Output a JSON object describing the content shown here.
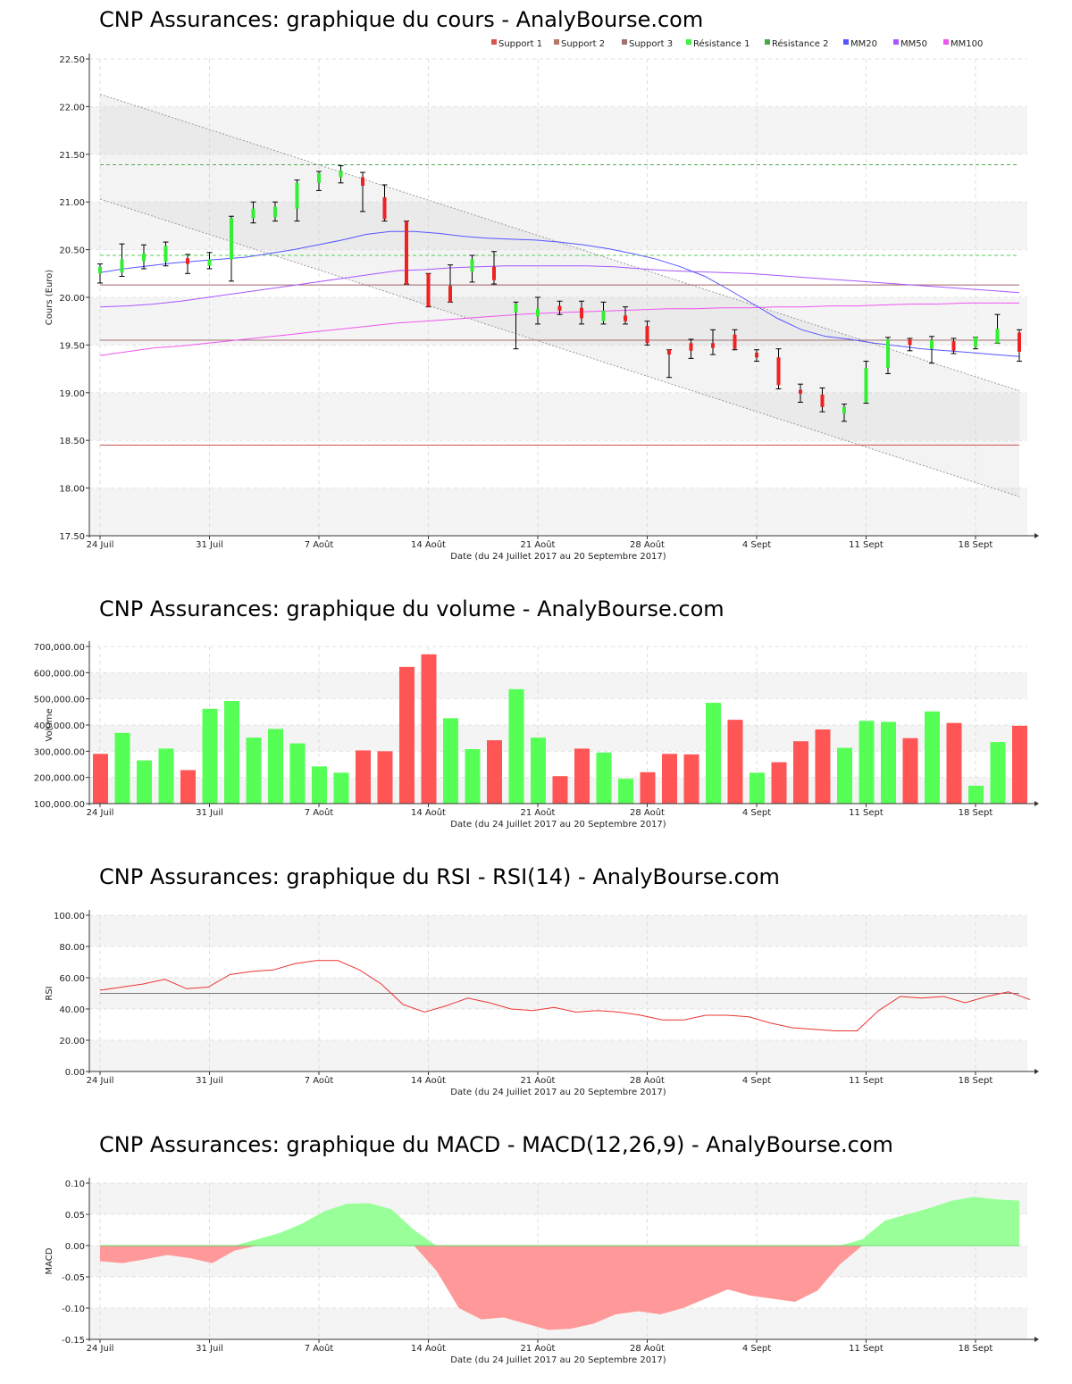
{
  "chart_data": [
    {
      "type": "candlestick",
      "title": "CNP Assurances: graphique du cours - AnalyBourse.com",
      "xlabel": "Date (du 24 Juillet 2017 au 20 Septembre 2017)",
      "ylabel": "Cours (Euro)",
      "ylim": [
        17.5,
        22.5
      ],
      "yticks": [
        "17.50",
        "18.00",
        "18.50",
        "19.00",
        "19.50",
        "20.00",
        "20.50",
        "21.00",
        "21.50",
        "22.00",
        "22.50"
      ],
      "xticks": [
        {
          "i": 0,
          "label": "24 Juil"
        },
        {
          "i": 5,
          "label": "31 Juil"
        },
        {
          "i": 10,
          "label": "7 Août"
        },
        {
          "i": 15,
          "label": "14 Août"
        },
        {
          "i": 20,
          "label": "21 Août"
        },
        {
          "i": 25,
          "label": "28 Août"
        },
        {
          "i": 30,
          "label": "4 Sept"
        },
        {
          "i": 35,
          "label": "11 Sept"
        },
        {
          "i": 40,
          "label": "18 Sept"
        }
      ],
      "legend": [
        {
          "name": "Support 1",
          "color": "#d9534f"
        },
        {
          "name": "Support 2",
          "color": "#b5756a"
        },
        {
          "name": "Support 3",
          "color": "#9e7070"
        },
        {
          "name": "Résistance 1",
          "color": "#44ee44"
        },
        {
          "name": "Résistance 2",
          "color": "#44aa44"
        },
        {
          "name": "MM20",
          "color": "#5555ff"
        },
        {
          "name": "MM50",
          "color": "#aa55ff"
        },
        {
          "name": "MM100",
          "color": "#ee55ee"
        }
      ],
      "levels": {
        "support1": 18.45,
        "support2": 19.55,
        "support3": 20.13,
        "resistance1": 20.44,
        "resistance2": 21.39
      },
      "channel": {
        "upper": [
          22.13,
          19.02
        ],
        "lower": [
          21.03,
          17.91
        ]
      },
      "ohlc": [
        {
          "o": 20.25,
          "h": 20.35,
          "l": 20.15,
          "c": 20.32
        },
        {
          "o": 20.26,
          "h": 20.56,
          "l": 20.22,
          "c": 20.4
        },
        {
          "o": 20.38,
          "h": 20.55,
          "l": 20.3,
          "c": 20.46
        },
        {
          "o": 20.37,
          "h": 20.58,
          "l": 20.33,
          "c": 20.54
        },
        {
          "o": 20.41,
          "h": 20.45,
          "l": 20.25,
          "c": 20.35
        },
        {
          "o": 20.33,
          "h": 20.47,
          "l": 20.3,
          "c": 20.4
        },
        {
          "o": 20.4,
          "h": 20.85,
          "l": 20.17,
          "c": 20.83
        },
        {
          "o": 20.83,
          "h": 21.0,
          "l": 20.78,
          "c": 20.93
        },
        {
          "o": 20.84,
          "h": 21.0,
          "l": 20.8,
          "c": 20.95
        },
        {
          "o": 20.93,
          "h": 21.23,
          "l": 20.8,
          "c": 21.2
        },
        {
          "o": 21.2,
          "h": 21.32,
          "l": 21.12,
          "c": 21.3
        },
        {
          "o": 21.26,
          "h": 21.38,
          "l": 21.2,
          "c": 21.33
        },
        {
          "o": 21.26,
          "h": 21.31,
          "l": 20.9,
          "c": 21.17
        },
        {
          "o": 21.05,
          "h": 21.18,
          "l": 20.8,
          "c": 20.82
        },
        {
          "o": 20.8,
          "h": 20.8,
          "l": 20.14,
          "c": 20.14
        },
        {
          "o": 20.25,
          "h": 20.25,
          "l": 19.9,
          "c": 19.9
        },
        {
          "o": 20.12,
          "h": 20.34,
          "l": 19.95,
          "c": 19.95
        },
        {
          "o": 20.27,
          "h": 20.44,
          "l": 20.16,
          "c": 20.4
        },
        {
          "o": 20.32,
          "h": 20.48,
          "l": 20.14,
          "c": 20.18
        },
        {
          "o": 19.84,
          "h": 19.95,
          "l": 19.46,
          "c": 19.93
        },
        {
          "o": 19.8,
          "h": 20.0,
          "l": 19.72,
          "c": 19.88
        },
        {
          "o": 19.91,
          "h": 19.96,
          "l": 19.82,
          "c": 19.86
        },
        {
          "o": 19.89,
          "h": 19.96,
          "l": 19.72,
          "c": 19.78
        },
        {
          "o": 19.75,
          "h": 19.95,
          "l": 19.72,
          "c": 19.86
        },
        {
          "o": 19.81,
          "h": 19.9,
          "l": 19.72,
          "c": 19.75
        },
        {
          "o": 19.7,
          "h": 19.75,
          "l": 19.5,
          "c": 19.52
        },
        {
          "o": 19.45,
          "h": 19.45,
          "l": 19.16,
          "c": 19.4
        },
        {
          "o": 19.52,
          "h": 19.56,
          "l": 19.36,
          "c": 19.44
        },
        {
          "o": 19.52,
          "h": 19.66,
          "l": 19.4,
          "c": 19.47
        },
        {
          "o": 19.61,
          "h": 19.66,
          "l": 19.45,
          "c": 19.46
        },
        {
          "o": 19.42,
          "h": 19.45,
          "l": 19.33,
          "c": 19.37
        },
        {
          "o": 19.37,
          "h": 19.46,
          "l": 19.04,
          "c": 19.08
        },
        {
          "o": 19.03,
          "h": 19.09,
          "l": 18.9,
          "c": 18.99
        },
        {
          "o": 18.98,
          "h": 19.05,
          "l": 18.8,
          "c": 18.85
        },
        {
          "o": 18.78,
          "h": 18.88,
          "l": 18.7,
          "c": 18.85
        },
        {
          "o": 18.9,
          "h": 19.33,
          "l": 18.89,
          "c": 19.26
        },
        {
          "o": 19.26,
          "h": 19.58,
          "l": 19.2,
          "c": 19.56
        },
        {
          "o": 19.56,
          "h": 19.57,
          "l": 19.44,
          "c": 19.5
        },
        {
          "o": 19.46,
          "h": 19.59,
          "l": 19.31,
          "c": 19.55
        },
        {
          "o": 19.54,
          "h": 19.57,
          "l": 19.41,
          "c": 19.44
        },
        {
          "o": 19.48,
          "h": 19.58,
          "l": 19.46,
          "c": 19.58
        },
        {
          "o": 19.52,
          "h": 19.82,
          "l": 19.52,
          "c": 19.67
        },
        {
          "o": 19.63,
          "h": 19.66,
          "l": 19.33,
          "c": 19.43
        }
      ],
      "mm20": [
        20.26,
        20.3,
        20.33,
        20.36,
        20.38,
        20.4,
        20.42,
        20.46,
        20.5,
        20.55,
        20.6,
        20.66,
        20.69,
        20.69,
        20.67,
        20.64,
        20.62,
        20.61,
        20.6,
        20.58,
        20.55,
        20.51,
        20.46,
        20.4,
        20.32,
        20.22,
        20.08,
        19.93,
        19.78,
        19.66,
        19.59,
        19.56,
        19.52,
        19.49,
        19.46,
        19.44,
        19.42,
        19.4,
        19.38
      ],
      "mm50": [
        19.9,
        19.91,
        19.93,
        19.96,
        20.0,
        20.04,
        20.08,
        20.12,
        20.16,
        20.2,
        20.24,
        20.28,
        20.29,
        20.31,
        20.32,
        20.33,
        20.33,
        20.33,
        20.33,
        20.32,
        20.3,
        20.28,
        20.27,
        20.26,
        20.25,
        20.23,
        20.21,
        20.19,
        20.17,
        20.15,
        20.13,
        20.11,
        20.09,
        20.07,
        20.05
      ],
      "mm100": [
        19.39,
        19.43,
        19.47,
        19.49,
        19.52,
        19.55,
        19.58,
        19.61,
        19.64,
        19.67,
        19.7,
        19.73,
        19.75,
        19.77,
        19.79,
        19.81,
        19.83,
        19.84,
        19.85,
        19.86,
        19.87,
        19.88,
        19.88,
        19.89,
        19.89,
        19.9,
        19.9,
        19.91,
        19.91,
        19.92,
        19.93,
        19.93,
        19.94,
        19.94,
        19.94
      ]
    },
    {
      "type": "bar",
      "title": "CNP Assurances: graphique du volume - AnalyBourse.com",
      "xlabel": "Date (du 24 Juillet 2017 au 20 Septembre 2017)",
      "ylabel": "Volume",
      "ylim": [
        100000,
        700000
      ],
      "yticks": [
        "100,000.00",
        "200,000.00",
        "300,000.00",
        "400,000.00",
        "500,000.00",
        "600,000.00",
        "700,000.00"
      ],
      "values": [
        290000,
        370000,
        265000,
        310000,
        228000,
        462000,
        492000,
        352000,
        385000,
        330000,
        242000,
        218000,
        303000,
        300000,
        622000,
        670000,
        426000,
        308000,
        342000,
        537000,
        352000,
        205000,
        310000,
        295000,
        195000,
        220000,
        290000,
        288000,
        485000,
        420000,
        218000,
        258000,
        338000,
        383000,
        313000,
        416000,
        412000,
        350000,
        452000,
        408000,
        168000,
        335000,
        397000
      ],
      "colors": [
        "down",
        "up",
        "up",
        "up",
        "down",
        "up",
        "up",
        "up",
        "up",
        "up",
        "up",
        "up",
        "down",
        "down",
        "down",
        "down",
        "up",
        "up",
        "down",
        "up",
        "up",
        "down",
        "down",
        "up",
        "up",
        "down",
        "down",
        "down",
        "up",
        "down",
        "up",
        "down",
        "down",
        "down",
        "up",
        "up",
        "up",
        "down",
        "up",
        "down",
        "up",
        "up",
        "down"
      ]
    },
    {
      "type": "line",
      "title": "CNP Assurances: graphique du RSI - RSI(14) - AnalyBourse.com",
      "xlabel": "Date (du 24 Juillet 2017 au 20 Septembre 2017)",
      "ylabel": "RSI",
      "ylim": [
        0,
        100
      ],
      "yticks": [
        "0.00",
        "20.00",
        "40.00",
        "60.00",
        "80.00",
        "100.00"
      ],
      "midline": 50,
      "values": [
        52,
        54,
        56,
        59,
        53,
        54,
        62,
        64,
        65,
        69,
        71,
        71,
        65,
        56,
        43,
        38,
        42,
        47,
        44,
        40,
        39,
        41,
        38,
        39,
        38,
        36,
        33,
        33,
        36,
        36,
        35,
        31,
        28,
        27,
        26,
        26,
        39,
        48,
        47,
        48,
        44,
        48,
        51,
        46
      ]
    },
    {
      "type": "area",
      "title": "CNP Assurances: graphique du MACD - MACD(12,26,9) - AnalyBourse.com",
      "xlabel": "Date (du 24 Juillet 2017 au 20 Septembre 2017)",
      "ylabel": "MACD",
      "ylim": [
        -0.15,
        0.1
      ],
      "yticks": [
        "-0.15",
        "-0.10",
        "-0.05",
        "0.00",
        "0.05",
        "0.10"
      ],
      "values": [
        -0.025,
        -0.028,
        -0.022,
        -0.015,
        -0.02,
        -0.028,
        -0.008,
        0.01,
        0.02,
        0.035,
        0.055,
        0.067,
        0.068,
        0.058,
        0.025,
        -0.04,
        -0.1,
        -0.118,
        -0.115,
        -0.125,
        -0.135,
        -0.133,
        -0.125,
        -0.11,
        -0.105,
        -0.11,
        -0.1,
        -0.085,
        -0.07,
        -0.08,
        -0.085,
        -0.09,
        -0.072,
        -0.03,
        0.01,
        0.04,
        0.05,
        0.06,
        0.072,
        0.078,
        0.074,
        0.072
      ]
    }
  ],
  "colors": {
    "up": "#55ff55",
    "down": "#ff5555",
    "rsi": "#ee3333",
    "macd_pos": "#99ff99",
    "macd_neg": "#ff9999"
  }
}
